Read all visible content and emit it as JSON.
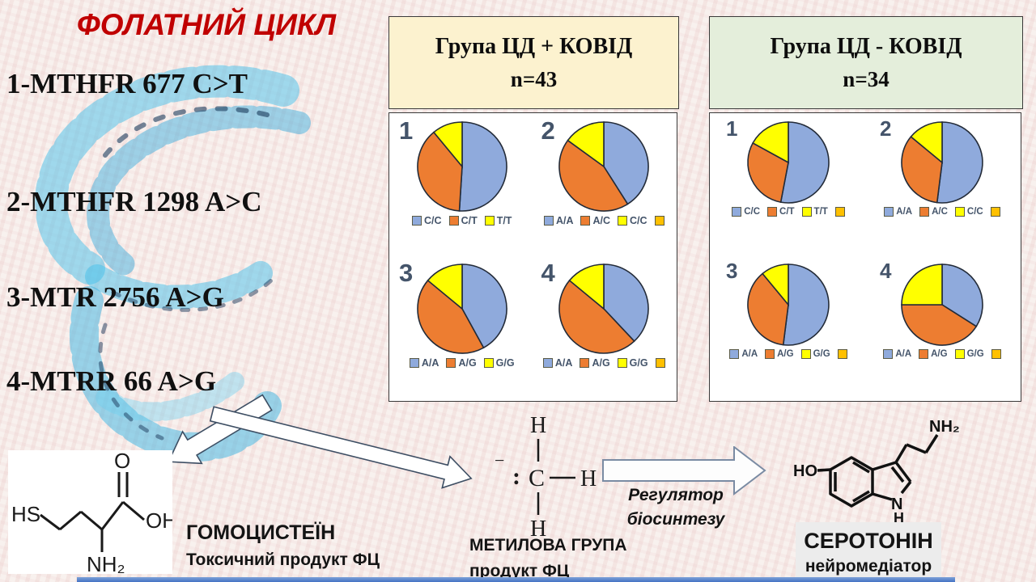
{
  "title": "ФОЛАТНИЙ ЦИКЛ",
  "gene_list": [
    "1-MTHFR 677 C>T",
    "2-MTHFR 1298 A>C",
    "3-MTR 2756 A>G",
    "4-MTRR 66 A>G"
  ],
  "groups": {
    "left": {
      "title": "Група ЦД + КОВІД",
      "n_label": "n=43",
      "header_bg": "#FCF2CF"
    },
    "right": {
      "title": "Група ЦД - КОВІД",
      "n_label": "n=34",
      "header_bg": "#E4EEDB"
    }
  },
  "pie_style": {
    "slice_colors": [
      "#8FAADC",
      "#ED7D31",
      "#FFFF00"
    ],
    "extra_box_color": "#FFC000",
    "outline": "#232b38",
    "legend_text_color": "#44546A"
  },
  "chart_data": [
    {
      "type": "pie",
      "panel": "Група ЦД + КОВІД n=43",
      "chart_number": "1",
      "gene": "MTHFR 677 C>T",
      "labels": [
        "C/C",
        "C/T",
        "T/T"
      ],
      "values": [
        51,
        38,
        11
      ],
      "legend_position": "bottom",
      "extra_legend_box": false
    },
    {
      "type": "pie",
      "panel": "Група ЦД + КОВІД n=43",
      "chart_number": "2",
      "gene": "MTHFR 1298 A>C",
      "labels": [
        "A/A",
        "A/C",
        "C/C"
      ],
      "values": [
        41,
        44,
        15
      ],
      "legend_position": "bottom",
      "extra_legend_box": true
    },
    {
      "type": "pie",
      "panel": "Група ЦД + КОВІД n=43",
      "chart_number": "3",
      "gene": "MTR 2756 A>G",
      "labels": [
        "A/A",
        "A/G",
        "G/G"
      ],
      "values": [
        42,
        44,
        14
      ],
      "legend_position": "bottom",
      "extra_legend_box": false
    },
    {
      "type": "pie",
      "panel": "Група ЦД + КОВІД n=43",
      "chart_number": "4",
      "gene": "MTRR 66 A>G",
      "labels": [
        "A/A",
        "A/G",
        "G/G"
      ],
      "values": [
        38,
        48,
        14
      ],
      "legend_position": "bottom",
      "extra_legend_box": true
    },
    {
      "type": "pie",
      "panel": "Група ЦД - КОВІД n=34",
      "chart_number": "1",
      "gene": "MTHFR 677 C>T",
      "labels": [
        "C/C",
        "C/T",
        "T/T"
      ],
      "values": [
        53,
        30,
        17
      ],
      "legend_position": "bottom",
      "extra_legend_box": true
    },
    {
      "type": "pie",
      "panel": "Група ЦД - КОВІД n=34",
      "chart_number": "2",
      "gene": "MTHFR 1298 A>C",
      "labels": [
        "A/A",
        "A/C",
        "C/C"
      ],
      "values": [
        52,
        34,
        14
      ],
      "legend_position": "bottom",
      "extra_legend_box": true
    },
    {
      "type": "pie",
      "panel": "Група ЦД - КОВІД n=34",
      "chart_number": "3",
      "gene": "MTR 2756 A>G",
      "labels": [
        "A/A",
        "A/G",
        "G/G"
      ],
      "values": [
        52,
        37,
        11
      ],
      "legend_position": "bottom",
      "extra_legend_box": true
    },
    {
      "type": "pie",
      "panel": "Група ЦД - КОВІД n=34",
      "chart_number": "4",
      "gene": "MTRR 66 A>G",
      "labels": [
        "A/A",
        "A/G",
        "G/G"
      ],
      "values": [
        34,
        41,
        25
      ],
      "legend_position": "bottom",
      "extra_legend_box": true
    }
  ],
  "chart_note": "slice values are percentages estimated from slice angles; no numeric data labels are shown in the image",
  "captions": {
    "homocysteine_name": "ГОМОЦИСТЕЇН",
    "homocysteine_desc": "Токсичний продукт ФЦ",
    "methyl_name": "МЕТИЛОВА ГРУПА",
    "methyl_desc": "продукт ФЦ",
    "serotonin_name": "СЕРОТОНІН",
    "serotonin_desc": "нейромедіатор",
    "arrow_caption_line1": "Регулятор",
    "arrow_caption_line2": "біосинтезу"
  },
  "atoms": {
    "homocysteine": {
      "hs": "HS",
      "o": "O",
      "oh": "OH",
      "nh2": "NH₂"
    },
    "methyl": {
      "h": "H",
      "c": "C",
      "minus": "−",
      "colon": ":"
    },
    "serotonin": {
      "ho": "HO",
      "nh2": "NH₂",
      "n": "N",
      "h": "H"
    }
  },
  "colors": {
    "title_red": "#C00000",
    "header_left_bg": "#FCF2CF",
    "header_right_bg": "#E4EEDB",
    "bottom_bar_blue": "#4472C4",
    "dna_sketch_cyan": "#3FB6E3"
  }
}
